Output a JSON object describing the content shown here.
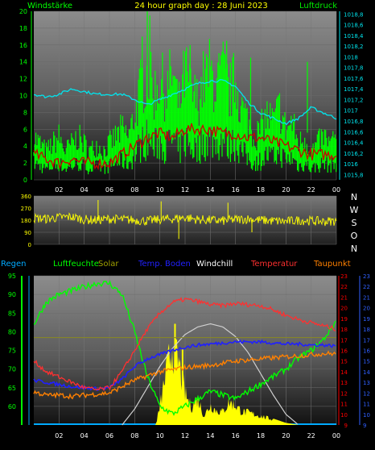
{
  "header": {
    "left": "Windstärke",
    "center": "24 hour graph day : 28 Juni 2023",
    "right": "Luftdruck"
  },
  "compass": [
    "N",
    "W",
    "S",
    "O",
    "N"
  ],
  "legend": [
    {
      "label": "Regen",
      "color": "#00aaff"
    },
    {
      "label": "Luftfeuchte",
      "color": "#00ff00"
    },
    {
      "label": "Solar",
      "color": "#a0a000"
    },
    {
      "label": "Temp. Boden",
      "color": "#2020ff"
    },
    {
      "label": "Windchill",
      "color": "#ffffff"
    },
    {
      "label": "Temperatur",
      "color": "#ff3030"
    },
    {
      "label": "Taupunkt",
      "color": "#ff8000"
    }
  ],
  "colors": {
    "wind": "#00ff00",
    "gust_base": "#cc0000",
    "pressure": "#00e5ee",
    "direction": "#ffff00",
    "humidity": "#00ff00",
    "solar": "#ffff00",
    "temp_soil": "#2020ff",
    "windchill": "#ffffff",
    "temperature": "#ff3030",
    "dewpoint": "#ff8000",
    "left_axis": "#00ff00",
    "right_axis_red": "#ff0000",
    "right_axis_blue": "#3060ff",
    "top_left_axis": "#00ff00",
    "top_right_axis": "#00e5ee"
  },
  "x_ticks": [
    "02",
    "04",
    "06",
    "08",
    "10",
    "12",
    "14",
    "16",
    "18",
    "20",
    "22",
    "00"
  ],
  "chart_data": [
    {
      "type": "line",
      "panel": "wind_pressure",
      "x_unit": "hour",
      "left_axis": {
        "ticks": [
          "0",
          "2",
          "4",
          "6",
          "8",
          "10",
          "12",
          "14",
          "16",
          "18",
          "20"
        ],
        "range": [
          0,
          20
        ]
      },
      "right_axis": {
        "ticks": [
          "1015,8",
          "1016",
          "1016,2",
          "1016,4",
          "1016,6",
          "1016,8",
          "1017",
          "1017,2",
          "1017,4",
          "1017,6",
          "1017,8",
          "1018",
          "1018,2",
          "1018,4",
          "1018,6",
          "1018,8"
        ],
        "range": [
          1015.7,
          1018.85
        ]
      },
      "series": [
        {
          "key": "wind_max",
          "x": [
            0,
            0.5,
            1,
            1.5,
            2,
            2.5,
            3,
            3.5,
            4,
            4.5,
            5,
            5.5,
            6,
            6.5,
            7,
            7.5,
            8,
            8.5,
            9,
            9.5,
            10,
            10.5,
            11,
            11.5,
            12,
            12.5,
            13,
            13.5,
            14,
            14.5,
            15,
            15.5,
            16,
            16.5,
            17,
            17.5,
            18,
            18.5,
            19,
            19.5,
            20,
            20.5,
            21,
            21.5,
            22,
            22.5,
            23,
            23.5,
            24
          ],
          "values": [
            6,
            5,
            4,
            5,
            6,
            4,
            5,
            6,
            5,
            4,
            5,
            4,
            5,
            6,
            7,
            6,
            9,
            13,
            15,
            12,
            14,
            12,
            15,
            10,
            15,
            12,
            11,
            14,
            15,
            13,
            15,
            12,
            14,
            10,
            8,
            6,
            7,
            9,
            8,
            10,
            7,
            8,
            5,
            6,
            4,
            5,
            6,
            5,
            6
          ]
        },
        {
          "key": "wind_avg",
          "x": [
            0,
            1,
            2,
            3,
            4,
            5,
            6,
            7,
            8,
            9,
            10,
            11,
            12,
            13,
            14,
            15,
            16,
            17,
            18,
            19,
            20,
            21,
            22,
            23,
            24
          ],
          "values": [
            3,
            2.5,
            2,
            2.5,
            2,
            2,
            2,
            3,
            4,
            5,
            5.5,
            5,
            6,
            6,
            6,
            5.5,
            5.5,
            5,
            5,
            4.5,
            4,
            3.5,
            3,
            3,
            3
          ]
        },
        {
          "key": "pressure",
          "x": [
            0,
            1,
            2,
            3,
            4,
            5,
            6,
            7,
            8,
            9,
            10,
            11,
            12,
            13,
            14,
            15,
            16,
            17,
            18,
            19,
            20,
            21,
            22,
            23,
            24
          ],
          "values": [
            1017.3,
            1017.25,
            1017.3,
            1017.4,
            1017.35,
            1017.3,
            1017.3,
            1017.3,
            1017.2,
            1017.1,
            1017.2,
            1017.3,
            1017.4,
            1017.5,
            1017.55,
            1017.55,
            1017.45,
            1017.15,
            1016.95,
            1016.85,
            1016.75,
            1016.85,
            1017.05,
            1016.95,
            1016.85
          ]
        }
      ]
    },
    {
      "type": "line",
      "panel": "wind_direction",
      "x_unit": "hour",
      "left_axis": {
        "ticks": [
          "0",
          "90",
          "180",
          "270",
          "360"
        ],
        "range": [
          0,
          360
        ]
      },
      "series": [
        {
          "key": "direction",
          "x": [
            0,
            1,
            2,
            3,
            4,
            5,
            6,
            7,
            8,
            9,
            10,
            11,
            12,
            13,
            14,
            15,
            16,
            17,
            18,
            19,
            20,
            21,
            22,
            23,
            24
          ],
          "values": [
            195,
            190,
            200,
            205,
            185,
            180,
            190,
            185,
            180,
            175,
            185,
            190,
            200,
            185,
            180,
            175,
            185,
            190,
            180,
            175,
            170,
            180,
            175,
            170,
            175
          ]
        }
      ]
    },
    {
      "type": "line",
      "panel": "temperature_humidity",
      "x_unit": "hour",
      "left_axis": {
        "ticks": [
          "60",
          "65",
          "70",
          "75",
          "80",
          "85",
          "90",
          "95"
        ],
        "range": [
          55,
          95
        ]
      },
      "right_axis_red": {
        "ticks": [
          "9",
          "10",
          "11",
          "12",
          "13",
          "14",
          "15",
          "16",
          "17",
          "18",
          "19",
          "20",
          "21",
          "22",
          "23"
        ],
        "range": [
          9,
          23
        ]
      },
      "right_axis_blue": {
        "ticks": [
          "9",
          "10",
          "11",
          "12",
          "13",
          "14",
          "15",
          "16",
          "17",
          "18",
          "19",
          "20",
          "21",
          "22",
          "23"
        ],
        "range": [
          9,
          23
        ]
      },
      "series": [
        {
          "key": "humidity",
          "x": [
            0,
            1,
            2,
            3,
            4,
            5,
            6,
            7,
            8,
            9,
            10,
            11,
            12,
            13,
            14,
            15,
            16,
            17,
            18,
            19,
            20,
            21,
            22,
            23,
            24
          ],
          "values": [
            82,
            88,
            90,
            91,
            92,
            93,
            93,
            90,
            80,
            68,
            60,
            58,
            60,
            62,
            64,
            63,
            62,
            64,
            66,
            68,
            70,
            73,
            75,
            78,
            83
          ]
        },
        {
          "key": "temperature",
          "x": [
            0,
            1,
            2,
            3,
            4,
            5,
            6,
            7,
            8,
            9,
            10,
            11,
            12,
            13,
            14,
            15,
            16,
            17,
            18,
            19,
            20,
            21,
            22,
            23,
            24
          ],
          "values": [
            15,
            14,
            13.5,
            13,
            12.5,
            12.3,
            12.5,
            14,
            16,
            18,
            19.5,
            20.5,
            20.8,
            20.6,
            20.3,
            20.2,
            20.4,
            20.3,
            20.2,
            19.8,
            19.3,
            18.9,
            18.6,
            18.3,
            18
          ]
        },
        {
          "key": "temp_soil",
          "x": [
            0,
            1,
            2,
            3,
            4,
            5,
            6,
            7,
            8,
            9,
            10,
            11,
            12,
            13,
            14,
            15,
            16,
            17,
            18,
            19,
            20,
            21,
            22,
            23,
            24
          ],
          "values": [
            13.2,
            13,
            12.8,
            12.6,
            12.5,
            12.4,
            12.5,
            13.3,
            14.5,
            15.2,
            15.6,
            16,
            16.3,
            16.5,
            16.6,
            16.7,
            16.8,
            16.8,
            16.8,
            16.7,
            16.6,
            16.6,
            16.5,
            16.5,
            16.4
          ]
        },
        {
          "key": "dewpoint",
          "x": [
            0,
            1,
            2,
            3,
            4,
            5,
            6,
            7,
            8,
            9,
            10,
            11,
            12,
            13,
            14,
            15,
            16,
            17,
            18,
            19,
            20,
            21,
            22,
            23,
            24
          ],
          "values": [
            12.1,
            11.8,
            11.8,
            11.7,
            11.8,
            11.9,
            12,
            12.6,
            13.2,
            13.6,
            14,
            14.2,
            14.4,
            14.5,
            14.6,
            14.8,
            15,
            15.1,
            15.2,
            15.3,
            15.4,
            15.5,
            15.6,
            15.7,
            15.7
          ]
        },
        {
          "key": "windchill",
          "x": [
            7,
            8,
            9,
            10,
            11,
            12,
            13,
            14,
            15,
            16,
            17,
            18,
            19,
            20,
            21
          ],
          "values": [
            9,
            10.5,
            12.5,
            14.5,
            16.2,
            17.5,
            18.2,
            18.5,
            18.2,
            17.3,
            15.8,
            13.8,
            11.8,
            10,
            9
          ]
        },
        {
          "key": "solar",
          "x": [
            0,
            5,
            6,
            7,
            8,
            8.5,
            9,
            9.5,
            10,
            10.5,
            11,
            11.5,
            12,
            12.5,
            13,
            13.5,
            14,
            14.5,
            15,
            15.5,
            16,
            16.5,
            17,
            18,
            19,
            20,
            21,
            22,
            23,
            24
          ],
          "values": [
            0,
            0,
            0.2,
            1.5,
            3,
            4.5,
            7,
            8,
            11,
            15,
            18,
            16,
            12.5,
            11,
            12,
            10,
            11.2,
            10.6,
            10.5,
            11.6,
            11.2,
            10.5,
            10.4,
            10,
            9.6,
            9.2,
            9,
            9,
            9,
            9
          ]
        }
      ]
    }
  ]
}
